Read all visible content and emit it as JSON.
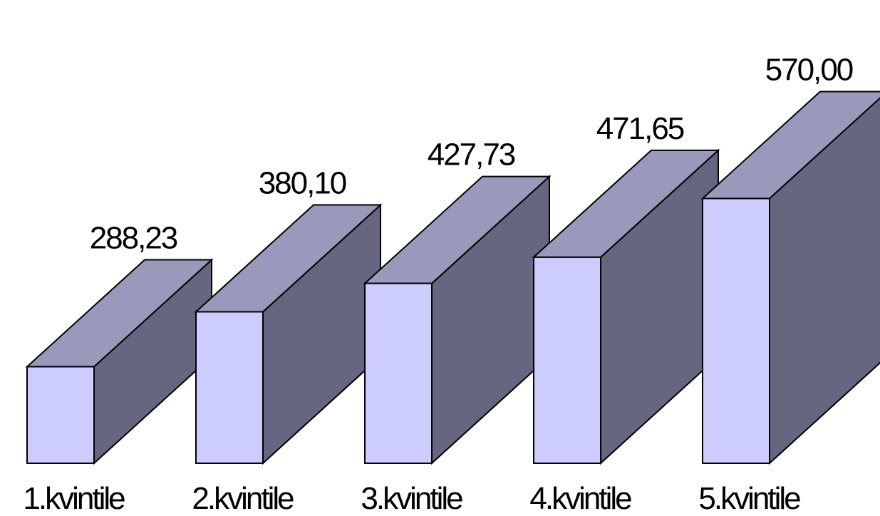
{
  "chart_data": {
    "type": "bar",
    "style": "3d-block",
    "categories": [
      "1.kvintile",
      "2.kvintile",
      "3.kvintile",
      "4.kvintile",
      "5.kvintile"
    ],
    "values": [
      288.23,
      380.1,
      427.73,
      471.65,
      570.0
    ],
    "value_labels": [
      "288,23",
      "380,10",
      "427,73",
      "471,65",
      "570,00"
    ],
    "title": "",
    "xlabel": "",
    "ylabel": "",
    "grid": false,
    "legend": "none",
    "colors": {
      "front": "#CCCCFF",
      "top": "#9999BB",
      "side": "#666680",
      "outline": "#000000"
    }
  }
}
